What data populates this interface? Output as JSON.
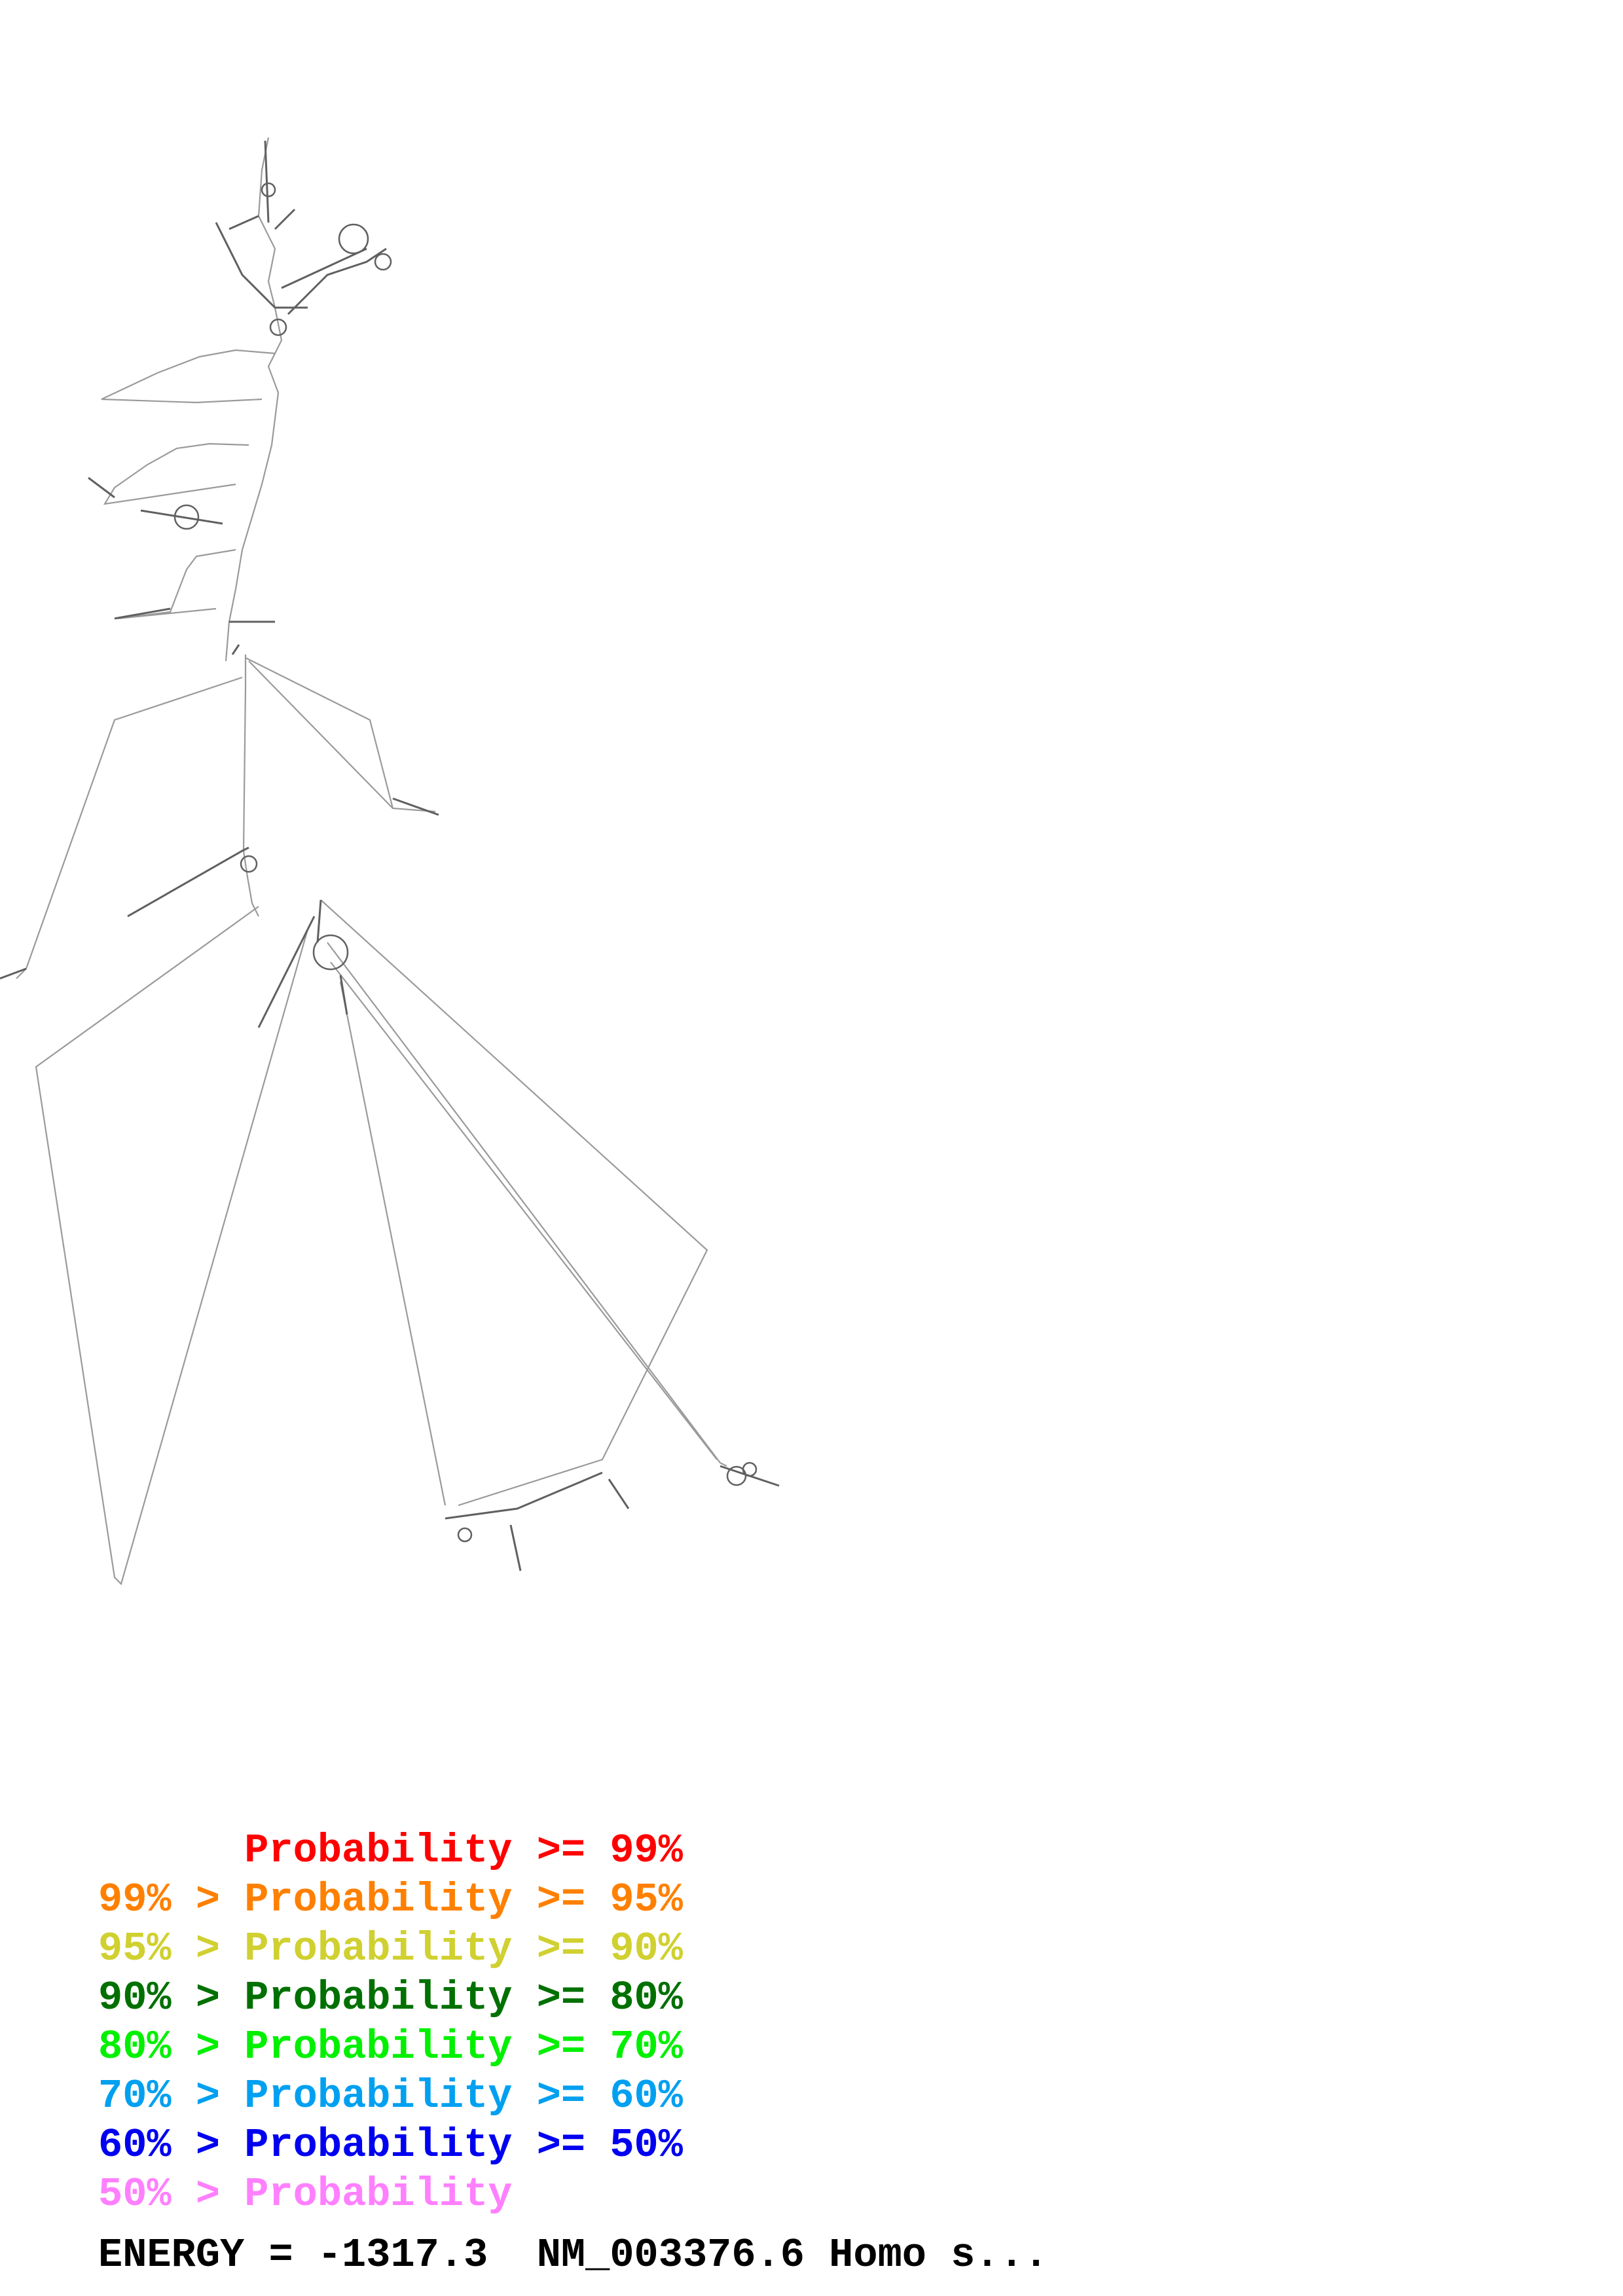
{
  "legend": [
    {
      "text": "      Probability >= 99%",
      "color": "#ff0000"
    },
    {
      "text": "99% > Probability >= 95%",
      "color": "#ff8000"
    },
    {
      "text": "95% > Probability >= 90%",
      "color": "#d0d030"
    },
    {
      "text": "90% > Probability >= 80%",
      "color": "#007000"
    },
    {
      "text": "80% > Probability >= 70%",
      "color": "#00f000"
    },
    {
      "text": "70% > Probability >= 60%",
      "color": "#00a0f0"
    },
    {
      "text": "60% > Probability >= 50%",
      "color": "#0000f0"
    },
    {
      "text": "50% > Probability",
      "color": "#ff80ff"
    }
  ],
  "energy_label": "ENERGY = -1317.3  NM_003376.6 Homo s...",
  "colors": {
    "backbone": "#9a9a9a",
    "base_pairs": "#606060"
  }
}
